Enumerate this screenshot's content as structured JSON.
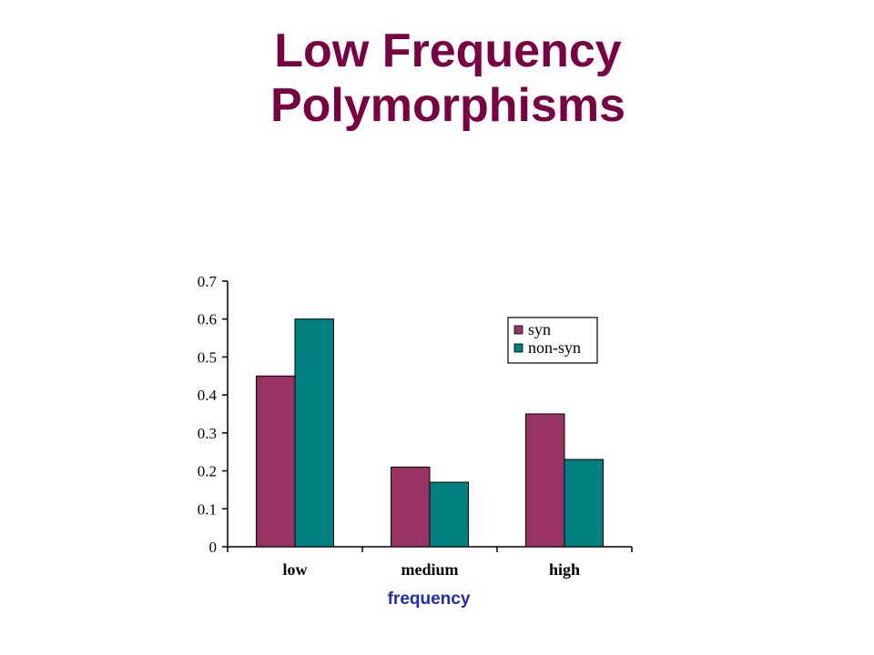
{
  "slide": {
    "title_line1": "Low Frequency",
    "title_line2": "Polymorphisms"
  },
  "chart_data": {
    "type": "bar",
    "title": "",
    "xlabel": "frequency",
    "ylabel": "",
    "categories": [
      "low",
      "medium",
      "high"
    ],
    "series": [
      {
        "name": "syn",
        "values": [
          0.45,
          0.21,
          0.35
        ],
        "color": "#993366"
      },
      {
        "name": "non-syn",
        "values": [
          0.6,
          0.17,
          0.23
        ],
        "color": "#008080"
      }
    ],
    "ylim": [
      0,
      0.7
    ],
    "yticks": [
      "0",
      "0.1",
      "0.2",
      "0.3",
      "0.4",
      "0.5",
      "0.6",
      "0.7"
    ],
    "grid": false,
    "legend_position": "top-right"
  }
}
